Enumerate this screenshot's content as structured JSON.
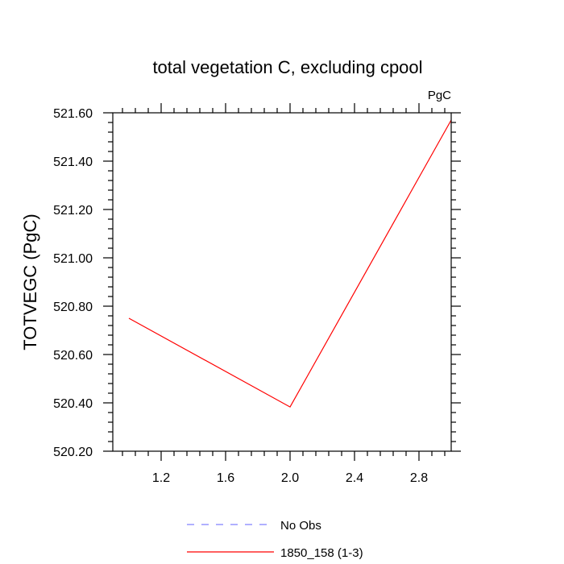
{
  "chart_data": {
    "type": "line",
    "title": "total vegetation C, excluding cpool",
    "units_label": "PgC",
    "xlabel": "",
    "ylabel": "TOTVEGC  (PgC)",
    "xlim": [
      0.9,
      3.0
    ],
    "ylim": [
      520.2,
      521.6
    ],
    "x_ticks": [
      1.2,
      1.6,
      2.0,
      2.4,
      2.8
    ],
    "x_tick_labels": [
      "1.2",
      "1.6",
      "2.0",
      "2.4",
      "2.8"
    ],
    "y_ticks": [
      520.2,
      520.4,
      520.6,
      520.8,
      521.0,
      521.2,
      521.4,
      521.6
    ],
    "y_tick_labels": [
      "520.20",
      "520.40",
      "520.60",
      "520.80",
      "521.00",
      "521.20",
      "521.40",
      "521.60"
    ],
    "grid": false,
    "legend_position": "bottom",
    "series": [
      {
        "name": "No Obs",
        "color": "#8080ff",
        "dashed": true,
        "x": [],
        "y": []
      },
      {
        "name": "1850_158 (1-3)",
        "color": "#ff0000",
        "dashed": false,
        "x": [
          1.0,
          2.0,
          3.0
        ],
        "y": [
          520.75,
          520.383,
          521.57
        ]
      }
    ]
  }
}
